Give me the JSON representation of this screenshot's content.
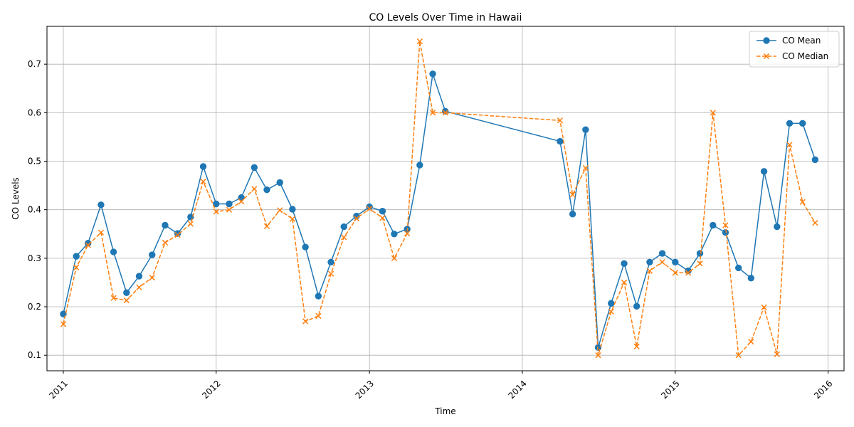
{
  "chart_data": {
    "type": "line",
    "title": "CO Levels Over Time in Hawaii",
    "xlabel": "Time",
    "ylabel": "CO Levels",
    "xlim": [
      "2010-11-23",
      "2016-02-08"
    ],
    "ylim": [
      0.068,
      0.778
    ],
    "x_ticks": [
      "2011",
      "2012",
      "2013",
      "2014",
      "2015",
      "2016"
    ],
    "y_ticks": [
      "0.1",
      "0.2",
      "0.3",
      "0.4",
      "0.5",
      "0.6",
      "0.7"
    ],
    "grid": true,
    "legend_position": "top-right",
    "series": [
      {
        "name": "CO Mean",
        "color": "#1f77b4",
        "line_style": "solid",
        "marker": "circle",
        "points": [
          [
            "2011-01-01",
            0.185
          ],
          [
            "2011-02-01",
            0.304
          ],
          [
            "2011-03-01",
            0.331
          ],
          [
            "2011-04-01",
            0.41
          ],
          [
            "2011-05-01",
            0.313
          ],
          [
            "2011-06-01",
            0.229
          ],
          [
            "2011-07-01",
            0.263
          ],
          [
            "2011-08-01",
            0.307
          ],
          [
            "2011-09-01",
            0.368
          ],
          [
            "2011-10-01",
            0.351
          ],
          [
            "2011-11-01",
            0.385
          ],
          [
            "2011-12-01",
            0.489
          ],
          [
            "2012-01-01",
            0.412
          ],
          [
            "2012-02-01",
            0.412
          ],
          [
            "2012-03-01",
            0.425
          ],
          [
            "2012-04-01",
            0.487
          ],
          [
            "2012-05-01",
            0.441
          ],
          [
            "2012-06-01",
            0.456
          ],
          [
            "2012-07-01",
            0.401
          ],
          [
            "2012-08-01",
            0.323
          ],
          [
            "2012-09-01",
            0.222
          ],
          [
            "2012-10-01",
            0.292
          ],
          [
            "2012-11-01",
            0.365
          ],
          [
            "2012-12-01",
            0.387
          ],
          [
            "2013-01-01",
            0.406
          ],
          [
            "2013-02-01",
            0.397
          ],
          [
            "2013-03-01",
            0.35
          ],
          [
            "2013-04-01",
            0.36
          ],
          [
            "2013-05-01",
            0.492
          ],
          [
            "2013-06-01",
            0.68
          ],
          [
            "2013-07-01",
            0.603
          ],
          [
            "2014-04-01",
            0.541
          ],
          [
            "2014-05-01",
            0.391
          ],
          [
            "2014-06-01",
            0.565
          ],
          [
            "2014-07-01",
            0.116
          ],
          [
            "2014-08-01",
            0.207
          ],
          [
            "2014-09-01",
            0.289
          ],
          [
            "2014-10-01",
            0.201
          ],
          [
            "2014-11-01",
            0.292
          ],
          [
            "2014-12-01",
            0.31
          ],
          [
            "2015-01-01",
            0.292
          ],
          [
            "2015-02-01",
            0.274
          ],
          [
            "2015-03-01",
            0.31
          ],
          [
            "2015-04-01",
            0.368
          ],
          [
            "2015-05-01",
            0.353
          ],
          [
            "2015-06-01",
            0.28
          ],
          [
            "2015-07-01",
            0.259
          ],
          [
            "2015-08-01",
            0.479
          ],
          [
            "2015-09-01",
            0.365
          ],
          [
            "2015-10-01",
            0.578
          ],
          [
            "2015-11-01",
            0.578
          ],
          [
            "2015-12-01",
            0.503
          ]
        ]
      },
      {
        "name": "CO Median",
        "color": "#ff7f0e",
        "line_style": "dashed",
        "marker": "x",
        "points": [
          [
            "2011-01-01",
            0.164
          ],
          [
            "2011-02-01",
            0.281
          ],
          [
            "2011-03-01",
            0.327
          ],
          [
            "2011-04-01",
            0.353
          ],
          [
            "2011-05-01",
            0.218
          ],
          [
            "2011-06-01",
            0.213
          ],
          [
            "2011-07-01",
            0.24
          ],
          [
            "2011-08-01",
            0.26
          ],
          [
            "2011-09-01",
            0.332
          ],
          [
            "2011-10-01",
            0.348
          ],
          [
            "2011-11-01",
            0.371
          ],
          [
            "2011-12-01",
            0.458
          ],
          [
            "2012-01-01",
            0.396
          ],
          [
            "2012-02-01",
            0.4
          ],
          [
            "2012-03-01",
            0.417
          ],
          [
            "2012-04-01",
            0.443
          ],
          [
            "2012-05-01",
            0.366
          ],
          [
            "2012-06-01",
            0.399
          ],
          [
            "2012-07-01",
            0.381
          ],
          [
            "2012-08-01",
            0.17
          ],
          [
            "2012-09-01",
            0.181
          ],
          [
            "2012-10-01",
            0.268
          ],
          [
            "2012-11-01",
            0.343
          ],
          [
            "2012-12-01",
            0.382
          ],
          [
            "2013-01-01",
            0.402
          ],
          [
            "2013-02-01",
            0.383
          ],
          [
            "2013-03-01",
            0.3
          ],
          [
            "2013-04-01",
            0.351
          ],
          [
            "2013-05-01",
            0.747
          ],
          [
            "2013-06-01",
            0.6
          ],
          [
            "2013-07-01",
            0.6
          ],
          [
            "2014-04-01",
            0.584
          ],
          [
            "2014-05-01",
            0.431
          ],
          [
            "2014-06-01",
            0.486
          ],
          [
            "2014-07-01",
            0.1
          ],
          [
            "2014-08-01",
            0.19
          ],
          [
            "2014-09-01",
            0.25
          ],
          [
            "2014-10-01",
            0.118
          ],
          [
            "2014-11-01",
            0.274
          ],
          [
            "2014-12-01",
            0.292
          ],
          [
            "2015-01-01",
            0.27
          ],
          [
            "2015-02-01",
            0.27
          ],
          [
            "2015-03-01",
            0.289
          ],
          [
            "2015-04-01",
            0.6
          ],
          [
            "2015-05-01",
            0.368
          ],
          [
            "2015-06-01",
            0.1
          ],
          [
            "2015-07-01",
            0.128
          ],
          [
            "2015-08-01",
            0.199
          ],
          [
            "2015-09-01",
            0.102
          ],
          [
            "2015-10-01",
            0.534
          ],
          [
            "2015-11-01",
            0.416
          ],
          [
            "2015-12-01",
            0.373
          ]
        ]
      }
    ]
  }
}
